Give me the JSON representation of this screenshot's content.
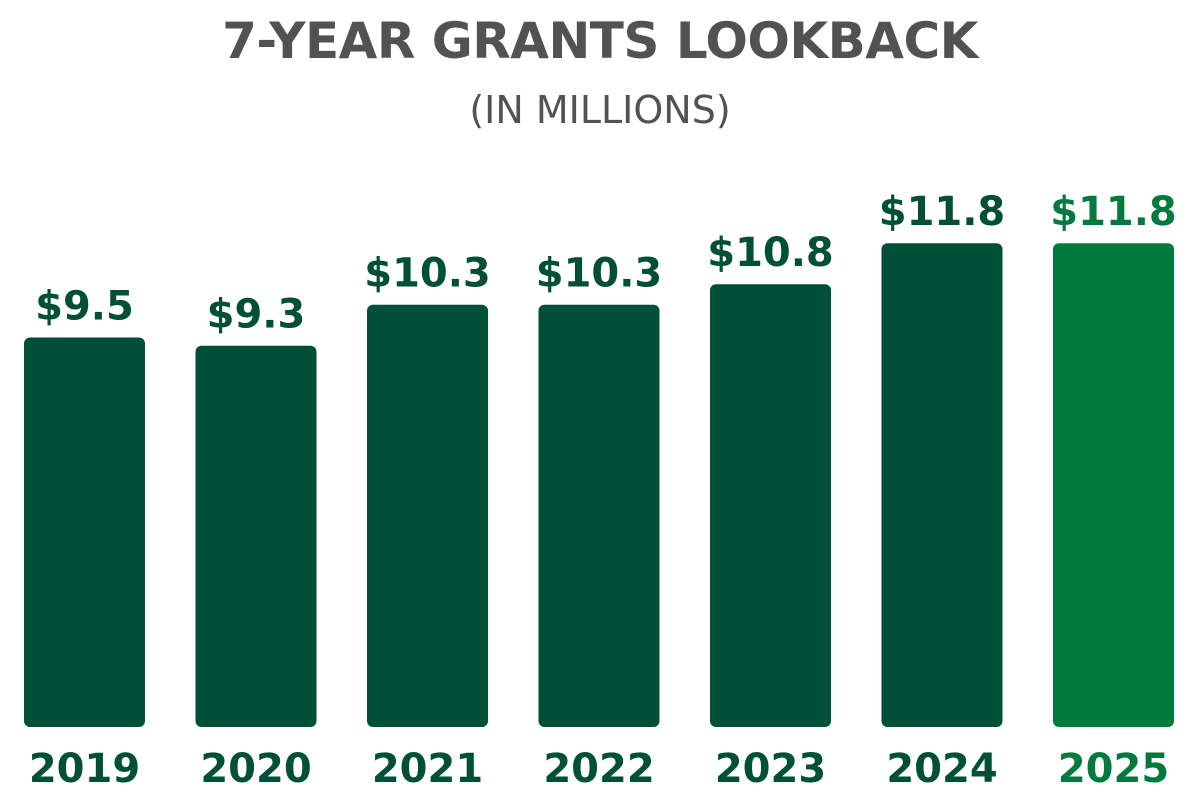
{
  "title": "7-YEAR GRANTS LOOKBACK",
  "subtitle": "(IN MILLIONS)",
  "colors": {
    "bar": "#004f37",
    "highlight": "#037a3d",
    "title_text": "#525252"
  },
  "chart_data": {
    "type": "bar",
    "title": "7-YEAR GRANTS LOOKBACK",
    "subtitle": "(IN MILLIONS)",
    "categories": [
      "2019",
      "2020",
      "2021",
      "2022",
      "2023",
      "2024",
      "2025"
    ],
    "values": [
      9.5,
      9.3,
      10.3,
      10.3,
      10.8,
      11.8,
      11.8
    ],
    "data_labels": [
      "$9.5",
      "$9.3",
      "$10.3",
      "$10.3",
      "$10.8",
      "$11.8",
      "$11.8"
    ],
    "highlighted_category": "2025",
    "xlabel": "",
    "ylabel": "",
    "grid": false,
    "legend": "none"
  }
}
